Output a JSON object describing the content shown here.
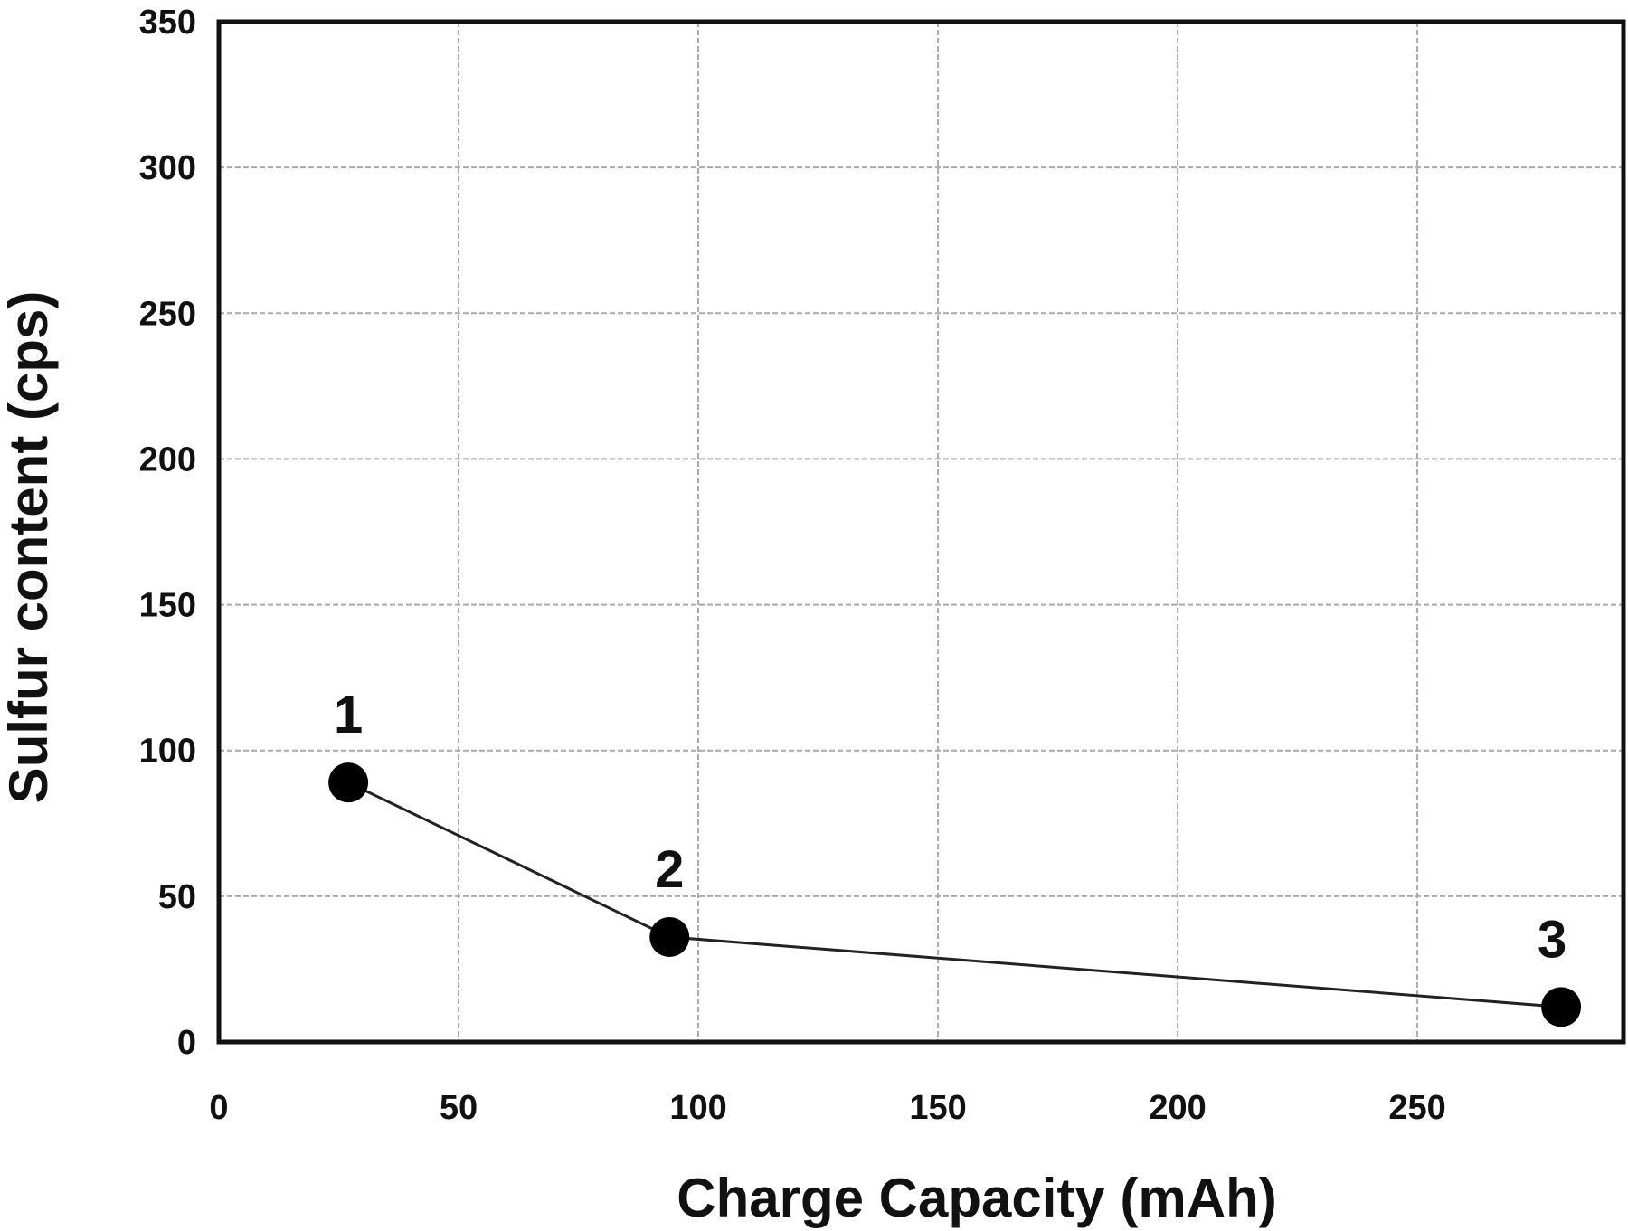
{
  "chart_data": {
    "type": "line",
    "title": "",
    "xlabel": "Charge Capacity (mAh)",
    "ylabel": "Sulfur content (cps)",
    "xlim": [
      0,
      293
    ],
    "ylim": [
      0,
      350
    ],
    "xticks": [
      0,
      50,
      100,
      150,
      200,
      250
    ],
    "yticks": [
      0,
      50,
      100,
      150,
      200,
      250,
      300,
      350
    ],
    "grid": true,
    "legend": null,
    "series": [
      {
        "name": "Sulfur content",
        "marker": "filled-circle",
        "color": "#000000",
        "points": [
          {
            "label": "1",
            "x": 27,
            "y": 89
          },
          {
            "label": "2",
            "x": 94,
            "y": 36
          },
          {
            "label": "3",
            "x": 280,
            "y": 12
          }
        ]
      }
    ]
  }
}
